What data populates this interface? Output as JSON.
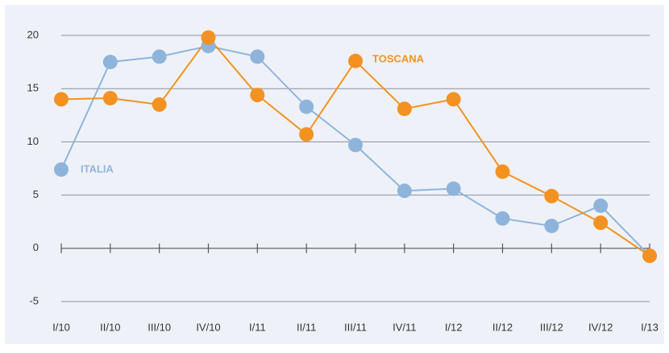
{
  "chart_data": {
    "type": "line",
    "categories": [
      "I/10",
      "II/10",
      "III/10",
      "IV/10",
      "I/11",
      "II/11",
      "III/11",
      "IV/11",
      "I/12",
      "II/12",
      "III/12",
      "IV/12",
      "I/13"
    ],
    "series": [
      {
        "name": "ITALIA",
        "color": "#8fb4dc",
        "values": [
          7.4,
          17.5,
          18.0,
          19.0,
          18.0,
          13.3,
          9.7,
          5.4,
          5.6,
          2.8,
          2.1,
          4.0,
          -0.7
        ]
      },
      {
        "name": "TOSCANA",
        "color": "#f39221",
        "values": [
          14.0,
          14.1,
          13.5,
          19.8,
          14.4,
          10.7,
          17.6,
          13.1,
          14.0,
          7.2,
          4.9,
          2.4,
          -0.7
        ]
      }
    ],
    "ylim": [
      -5,
      20
    ],
    "yticks": [
      -5,
      0,
      5,
      10,
      15,
      20
    ],
    "grid": true
  }
}
